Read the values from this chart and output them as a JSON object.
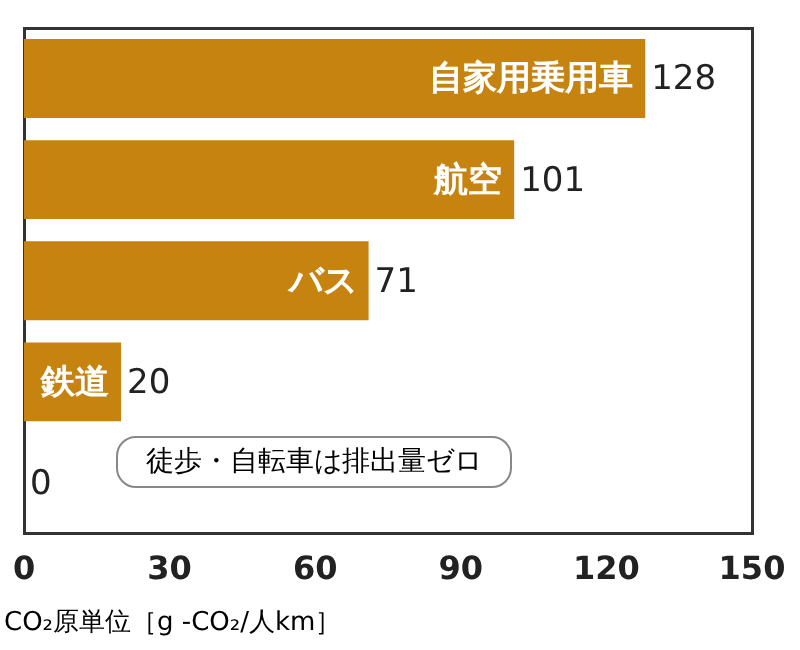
{
  "chart_data": {
    "type": "bar",
    "orientation": "horizontal",
    "categories": [
      "自家用乗用車",
      "航空",
      "バス",
      "鉄道",
      null
    ],
    "values": [
      128,
      101,
      71,
      20,
      0
    ],
    "color": "#c7830f",
    "data_labels": true,
    "xlim": [
      0,
      150
    ],
    "xticks": [
      0,
      30,
      60,
      90,
      120,
      150
    ],
    "grid": false,
    "legend": false,
    "xlabel": "CO₂原単位［g -CO₂/人km］",
    "annotations": [
      "徒歩・自転車は排出量ゼロ"
    ]
  }
}
